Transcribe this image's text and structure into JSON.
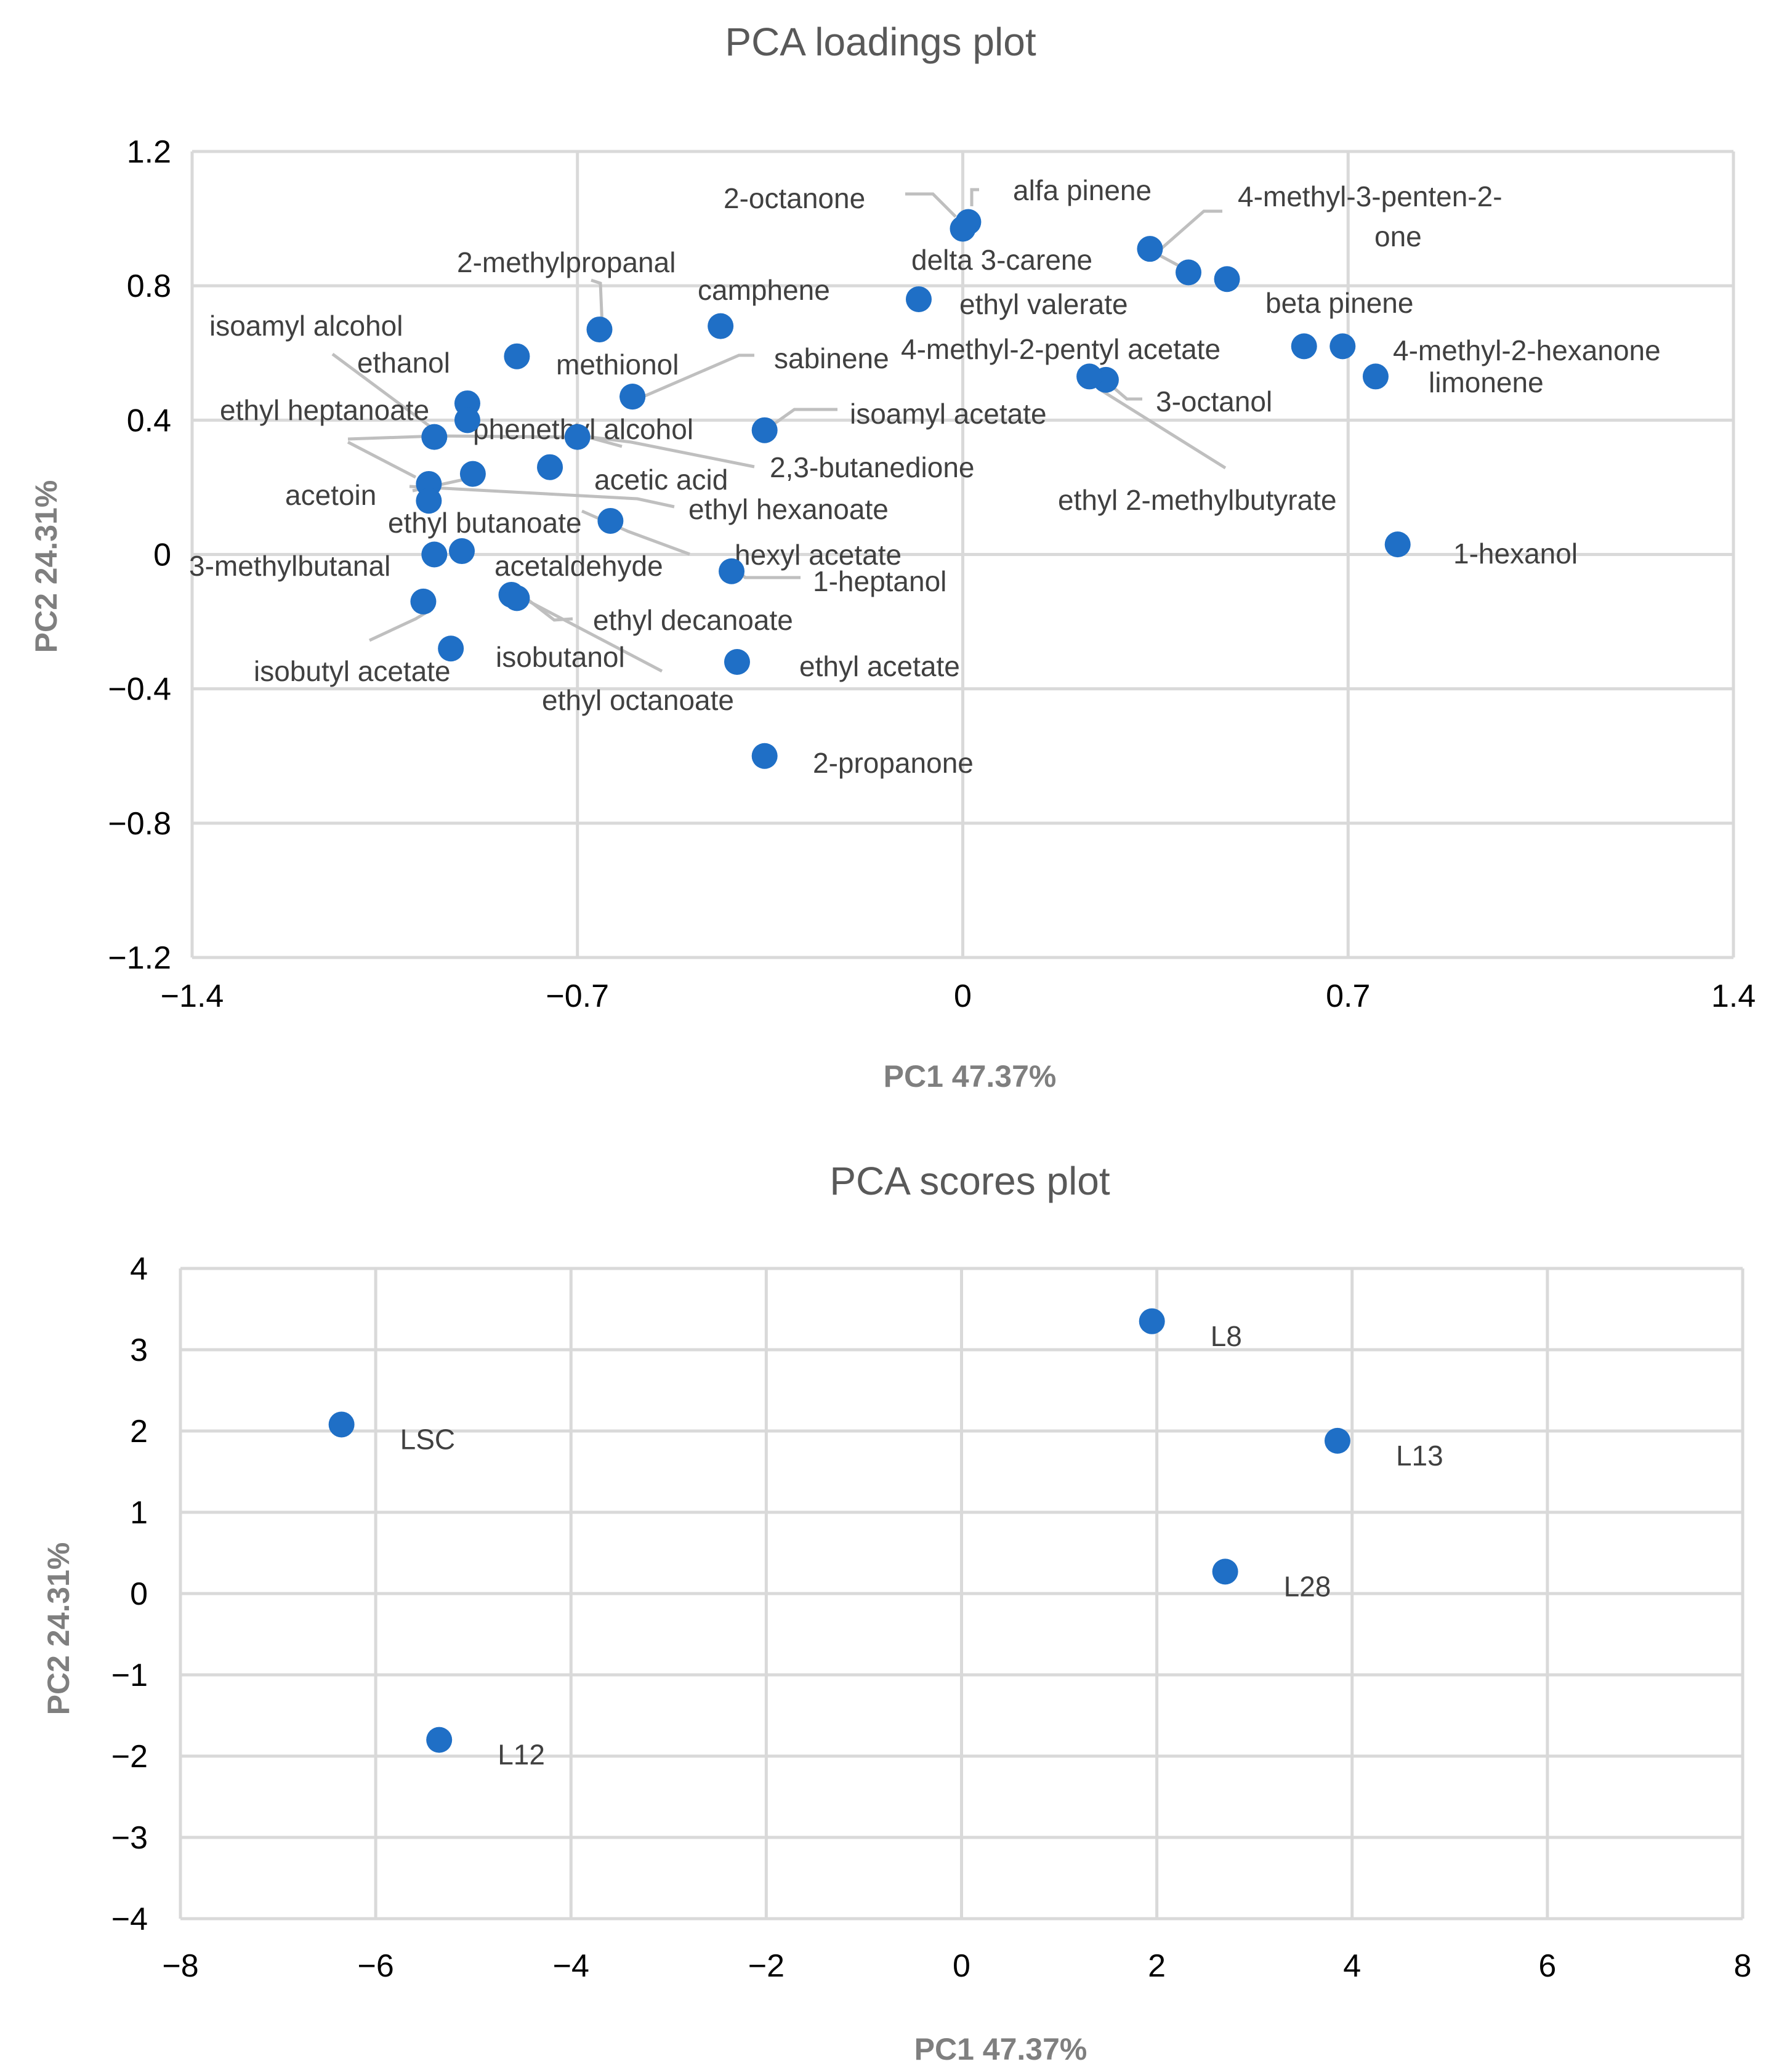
{
  "chart_data": [
    {
      "type": "scatter",
      "title": "PCA loadings plot",
      "xlabel": "PC1 47.37%",
      "ylabel": "PC2 24.31%",
      "xlim": [
        -1.4,
        1.4
      ],
      "ylim": [
        -1.2,
        1.2
      ],
      "xticks": [
        -1.4,
        -0.7,
        0,
        0.7,
        1.4
      ],
      "yticks": [
        -1.2,
        -0.8,
        -0.4,
        0,
        0.4,
        0.8,
        1.2
      ],
      "xtick_labels": [
        "−1.4",
        "−0.7",
        "0",
        "0.7",
        "1.4"
      ],
      "ytick_labels": [
        "−1.2",
        "−0.8",
        "−0.4",
        "0",
        "0.4",
        "0.8",
        "1.2"
      ],
      "color": "#1f6fc6",
      "points": [
        {
          "label": "2-octanone",
          "x": 0.01,
          "y": 0.99
        },
        {
          "label": "alfa pinene",
          "x": 0.0,
          "y": 0.97
        },
        {
          "label": "4-methyl-3-penten-2-one",
          "x": 0.34,
          "y": 0.91
        },
        {
          "label": "delta 3-carene",
          "x": 0.41,
          "y": 0.84
        },
        {
          "label": "ethyl valerate",
          "x": -0.08,
          "y": 0.76
        },
        {
          "label": "beta pinene",
          "x": 0.48,
          "y": 0.82
        },
        {
          "label": "2-methylpropanal",
          "x": -0.66,
          "y": 0.67
        },
        {
          "label": "camphene",
          "x": -0.44,
          "y": 0.68
        },
        {
          "label": "isoamyl alcohol",
          "x": -0.81,
          "y": 0.59
        },
        {
          "label": "4-methyl-2-pentyl acetate",
          "x": 0.62,
          "y": 0.62
        },
        {
          "label": "4-methyl-2-hexanone",
          "x": 0.69,
          "y": 0.62
        },
        {
          "label": "limonene",
          "x": 0.75,
          "y": 0.53
        },
        {
          "label": "3-octanol",
          "x": 0.26,
          "y": 0.52
        },
        {
          "label": "ethyl 2-methylbutyrate",
          "x": 0.23,
          "y": 0.53
        },
        {
          "label": "methionol",
          "x": -0.6,
          "y": 0.47
        },
        {
          "label": "sabinene",
          "x": -0.6,
          "y": 0.47
        },
        {
          "label": "ethanol",
          "x": -0.9,
          "y": 0.45
        },
        {
          "label": "ethyl heptanoate",
          "x": -0.9,
          "y": 0.4
        },
        {
          "label": "isoamyl acetate",
          "x": -0.36,
          "y": 0.37
        },
        {
          "label": "phenethyl alcohol",
          "x": -0.96,
          "y": 0.35
        },
        {
          "label": "2,3-butanedione",
          "x": -0.7,
          "y": 0.35
        },
        {
          "label": "acetic acid",
          "x": -0.75,
          "y": 0.26
        },
        {
          "label": "ethyl hexanoate",
          "x": -0.89,
          "y": 0.24
        },
        {
          "label": "acetoin",
          "x": -0.97,
          "y": 0.21
        },
        {
          "label": "ethyl butanoate",
          "x": -0.97,
          "y": 0.16
        },
        {
          "label": "hexyl acetate",
          "x": -0.64,
          "y": 0.1
        },
        {
          "label": "1-hexanol",
          "x": 0.79,
          "y": 0.03
        },
        {
          "label": "3-methylbutanal",
          "x": -0.96,
          "y": 0.0
        },
        {
          "label": "acetaldehyde",
          "x": -0.91,
          "y": 0.01
        },
        {
          "label": "1-heptanol",
          "x": -0.42,
          "y": -0.05
        },
        {
          "label": "ethyl decanoate",
          "x": -0.82,
          "y": -0.12
        },
        {
          "label": "ethyl octanoate",
          "x": -0.81,
          "y": -0.13
        },
        {
          "label": "isobutyl acetate",
          "x": -0.98,
          "y": -0.14
        },
        {
          "label": "isobutanol",
          "x": -0.93,
          "y": -0.28
        },
        {
          "label": "ethyl acetate",
          "x": -0.41,
          "y": -0.32
        },
        {
          "label": "2-propanone",
          "x": -0.36,
          "y": -0.6
        }
      ],
      "label_texts": [
        "2-octanone",
        "alfa pinene",
        "4-methyl-3-penten-2-",
        "one",
        "delta 3-carene",
        "2-methylpropanal",
        "camphene",
        "ethyl valerate",
        "beta pinene",
        "isoamyl alcohol",
        "ethanol",
        "sabinene",
        "methionol",
        "4-methyl-2-pentyl acetate",
        "4-methyl-2-hexanone",
        "limonene",
        "3-octanol",
        "ethyl heptanoate",
        "phenethyl alcohol",
        "isoamyl acetate",
        "2,3-butanedione",
        "acetic acid",
        "acetoin",
        "ethyl hexanoate",
        "ethyl 2-methylbutyrate",
        "ethyl butanoate",
        "hexyl acetate",
        "1-hexanol",
        "3-methylbutanal",
        "acetaldehyde",
        "1-heptanol",
        "ethyl decanoate",
        "isobutanol",
        "ethyl acetate",
        "isobutyl acetate",
        "ethyl octanoate",
        "2-propanone"
      ]
    },
    {
      "type": "scatter",
      "title": "PCA scores plot",
      "xlabel": "PC1 47.37%",
      "ylabel": "PC2 24.31%",
      "xlim": [
        -8,
        8
      ],
      "ylim": [
        -4,
        4
      ],
      "xticks": [
        -8,
        -6,
        -4,
        -2,
        0,
        2,
        4,
        6,
        8
      ],
      "yticks": [
        -4,
        -3,
        -2,
        -1,
        0,
        1,
        2,
        3,
        4
      ],
      "xtick_labels": [
        "−8",
        "−6",
        "−4",
        "−2",
        "0",
        "2",
        "4",
        "6",
        "8"
      ],
      "ytick_labels": [
        "−4",
        "−3",
        "−2",
        "−1",
        "0",
        "1",
        "2",
        "3",
        "4"
      ],
      "color": "#1f6fc6",
      "points": [
        {
          "label": "L8",
          "x": 1.95,
          "y": 3.35
        },
        {
          "label": "LSC",
          "x": -6.35,
          "y": 2.08
        },
        {
          "label": "L13",
          "x": 3.85,
          "y": 1.88
        },
        {
          "label": "L28",
          "x": 2.7,
          "y": 0.27
        },
        {
          "label": "L12",
          "x": -5.35,
          "y": -1.8
        }
      ]
    }
  ]
}
